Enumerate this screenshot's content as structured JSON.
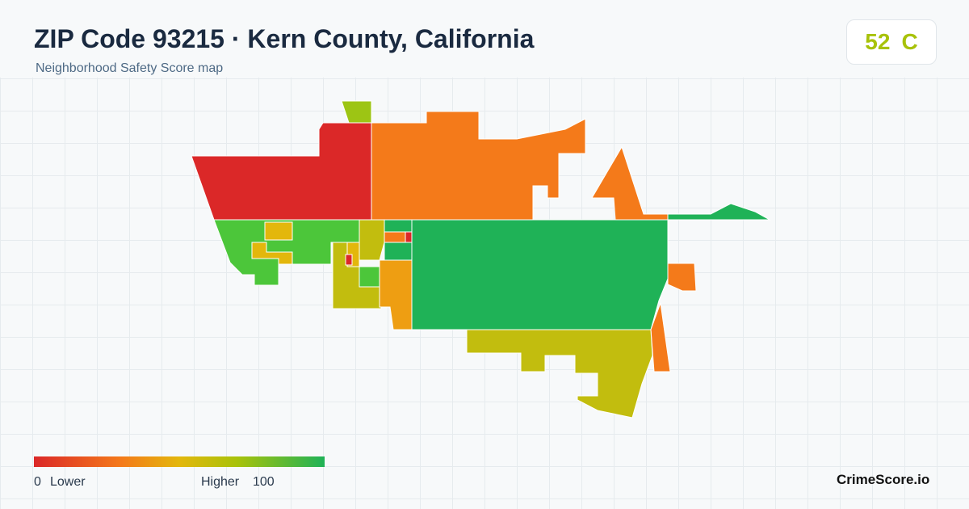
{
  "header": {
    "title": "ZIP Code 93215 · Kern County, California",
    "subtitle": "Neighborhood Safety Score map"
  },
  "score": {
    "value": 52,
    "grade": "C"
  },
  "legend": {
    "min": 0,
    "min_label": "Lower",
    "max_label": "Higher",
    "max": 100
  },
  "brand": "CrimeScore.io"
}
